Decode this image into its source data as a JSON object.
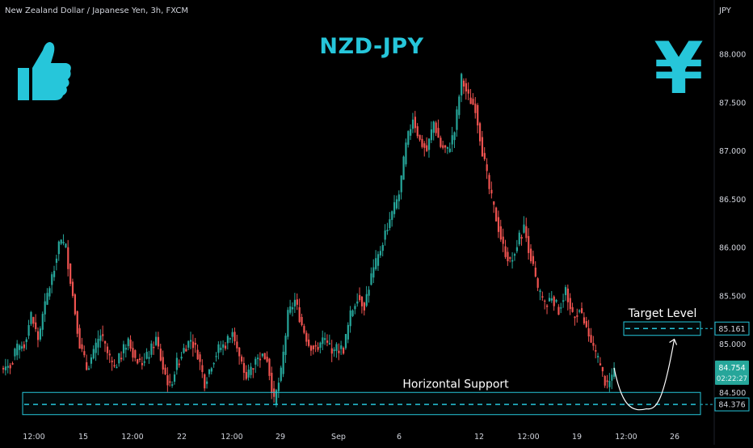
{
  "header": {
    "symbol_title": "New Zealand Dollar / Japanese Yen, 3h, FXCM",
    "currency": "JPY",
    "main_title": "NZD-JPY"
  },
  "icons": {
    "left": "thumbs-up-icon",
    "right": "yen-sign-icon",
    "yen_glyph": "¥"
  },
  "colors": {
    "background": "#000000",
    "up": "#26a69a",
    "down": "#ef5350",
    "accent": "#26c6da",
    "text": "#d1d4dc"
  },
  "chart_data": {
    "type": "candlestick",
    "title": "NZD-JPY",
    "ylim": [
      84.3,
      88.45
    ],
    "y_ticks": [
      "88.000",
      "87.500",
      "87.000",
      "86.500",
      "86.000",
      "85.500",
      "85.000",
      "84.500"
    ],
    "x_ticks": [
      "12:00",
      "15",
      "12:00",
      "22",
      "12:00",
      "29",
      "Sep",
      "6",
      "12",
      "12:00",
      "19",
      "12:00",
      "26"
    ],
    "price_path": [
      [
        0,
        84.75
      ],
      [
        3,
        84.8
      ],
      [
        6,
        84.95
      ],
      [
        9,
        85.0
      ],
      [
        12,
        85.3
      ],
      [
        15,
        85.05
      ],
      [
        18,
        85.4
      ],
      [
        21,
        85.7
      ],
      [
        24,
        86.05
      ],
      [
        27,
        86.0
      ],
      [
        30,
        85.5
      ],
      [
        33,
        85.0
      ],
      [
        36,
        84.75
      ],
      [
        39,
        84.9
      ],
      [
        42,
        85.1
      ],
      [
        45,
        84.9
      ],
      [
        48,
        84.75
      ],
      [
        51,
        84.9
      ],
      [
        54,
        85.05
      ],
      [
        57,
        84.85
      ],
      [
        60,
        84.8
      ],
      [
        63,
        84.9
      ],
      [
        66,
        85.05
      ],
      [
        69,
        84.75
      ],
      [
        72,
        84.55
      ],
      [
        75,
        84.8
      ],
      [
        78,
        84.95
      ],
      [
        81,
        85.05
      ],
      [
        84,
        84.9
      ],
      [
        87,
        84.6
      ],
      [
        90,
        84.8
      ],
      [
        93,
        84.95
      ],
      [
        96,
        85.0
      ],
      [
        99,
        85.15
      ],
      [
        102,
        84.85
      ],
      [
        105,
        84.65
      ],
      [
        108,
        84.8
      ],
      [
        111,
        84.9
      ],
      [
        114,
        84.85
      ],
      [
        117,
        84.4
      ],
      [
        120,
        84.7
      ],
      [
        123,
        85.3
      ],
      [
        126,
        85.45
      ],
      [
        129,
        85.2
      ],
      [
        132,
        85.0
      ],
      [
        135,
        84.95
      ],
      [
        138,
        85.05
      ],
      [
        141,
        84.95
      ],
      [
        144,
        84.95
      ],
      [
        147,
        84.95
      ],
      [
        150,
        85.3
      ],
      [
        153,
        85.5
      ],
      [
        156,
        85.4
      ],
      [
        159,
        85.7
      ],
      [
        162,
        85.9
      ],
      [
        165,
        86.15
      ],
      [
        168,
        86.35
      ],
      [
        171,
        86.55
      ],
      [
        174,
        87.05
      ],
      [
        177,
        87.35
      ],
      [
        180,
        87.1
      ],
      [
        183,
        87.0
      ],
      [
        186,
        87.3
      ],
      [
        189,
        87.05
      ],
      [
        192,
        87.0
      ],
      [
        195,
        87.2
      ],
      [
        198,
        87.75
      ],
      [
        201,
        87.55
      ],
      [
        204,
        87.45
      ],
      [
        207,
        87.0
      ],
      [
        210,
        86.6
      ],
      [
        213,
        86.3
      ],
      [
        216,
        86.0
      ],
      [
        219,
        85.85
      ],
      [
        222,
        86.05
      ],
      [
        225,
        86.2
      ],
      [
        228,
        85.9
      ],
      [
        231,
        85.55
      ],
      [
        234,
        85.4
      ],
      [
        237,
        85.5
      ],
      [
        240,
        85.35
      ],
      [
        243,
        85.55
      ],
      [
        246,
        85.3
      ],
      [
        249,
        85.35
      ],
      [
        252,
        85.15
      ],
      [
        255,
        84.95
      ],
      [
        258,
        84.75
      ],
      [
        261,
        84.55
      ],
      [
        262,
        84.6
      ],
      [
        264,
        84.754
      ]
    ],
    "last_candle_index": 264,
    "last_price": 84.754,
    "countdown": "02:22:27",
    "target": {
      "label": "Target Level",
      "value": 85.161,
      "value_label": "85.161",
      "zone": [
        85.09,
        85.23
      ]
    },
    "support": {
      "label": "Horizontal Support",
      "value": 84.376,
      "value_label": "84.376",
      "zone": [
        84.27,
        84.5
      ]
    },
    "projection": {
      "type": "curve",
      "points": [
        [
          264,
          84.754
        ],
        [
          270,
          84.4
        ],
        [
          278,
          84.33
        ],
        [
          284,
          84.6
        ],
        [
          290,
          85.1
        ]
      ]
    },
    "grid": false
  }
}
